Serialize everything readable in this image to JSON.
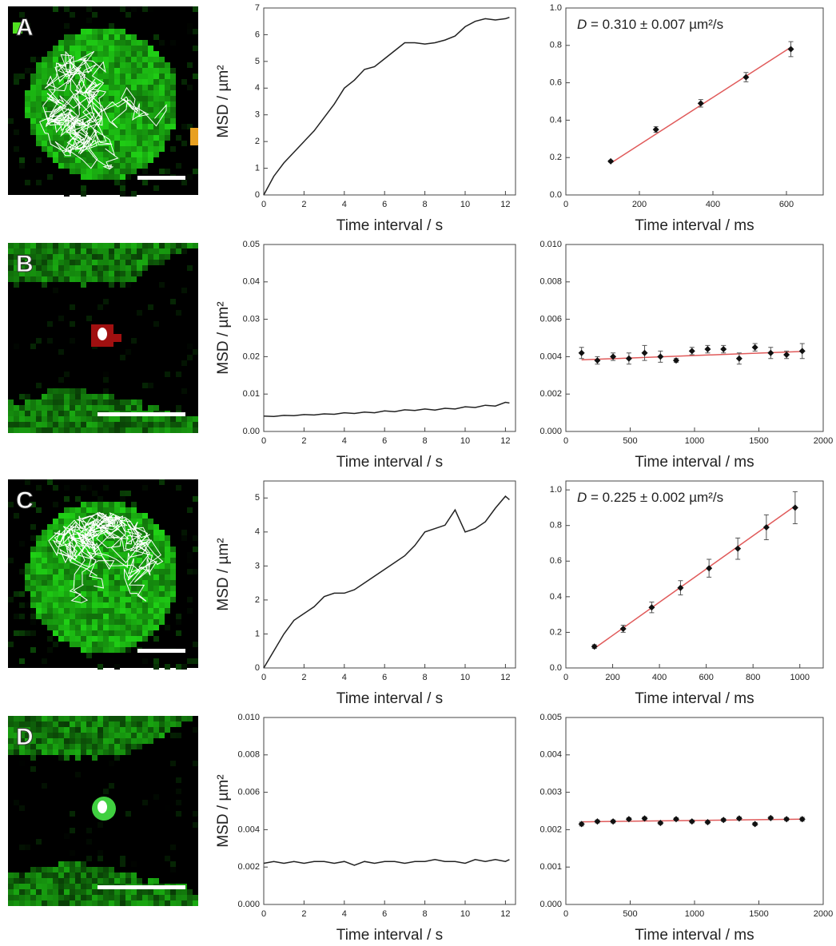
{
  "panels": [
    "A",
    "B",
    "C",
    "D"
  ],
  "chart_data": [
    {
      "type": "line",
      "xlabel": "Time interval / s",
      "ylabel": "MSD / µm²",
      "color": "#222222",
      "x": [
        0,
        0.5,
        1,
        1.5,
        2,
        2.5,
        3,
        3.5,
        4,
        4.5,
        5,
        5.5,
        6,
        6.5,
        7,
        7.5,
        8,
        8.5,
        9,
        9.5,
        10,
        10.5,
        11,
        11.5,
        12,
        12.2
      ],
      "values": [
        0,
        0.7,
        1.2,
        1.6,
        2.0,
        2.4,
        2.9,
        3.4,
        4.0,
        4.3,
        4.7,
        4.8,
        5.1,
        5.4,
        5.7,
        5.7,
        5.65,
        5.7,
        5.8,
        5.95,
        6.3,
        6.5,
        6.6,
        6.55,
        6.6,
        6.65
      ],
      "xlim": [
        0,
        12.5
      ],
      "xticks": [
        0,
        2,
        4,
        6,
        8,
        10,
        12
      ],
      "ylim": [
        0,
        7
      ],
      "yticks": [
        0,
        1,
        2,
        3,
        4,
        5,
        6,
        7
      ]
    },
    {
      "type": "scatter",
      "xlabel": "Time interval / ms",
      "annotation_symbol": "D",
      "annotation": " = 0.310 ± 0.007 µm²/s",
      "series": [
        {
          "color": "#111111",
          "x": [
            122,
            245,
            367,
            490,
            612
          ],
          "values": [
            0.18,
            0.35,
            0.49,
            0.63,
            0.78
          ],
          "errors": [
            0.005,
            0.015,
            0.02,
            0.025,
            0.04
          ]
        }
      ],
      "fit": {
        "color": "#e05a5a",
        "x": [
          122,
          612
        ],
        "values": [
          0.17,
          0.79
        ]
      },
      "xlim": [
        0,
        700
      ],
      "xticks": [
        0,
        200,
        400,
        600
      ],
      "ylim": [
        0,
        1.0
      ],
      "yticks": [
        {
          "value": 0,
          "label": "0.0"
        },
        0.2,
        0.4,
        0.6,
        0.8,
        {
          "value": 1,
          "label": "1.0"
        }
      ]
    },
    {
      "type": "line",
      "xlabel": "Time interval / s",
      "ylabel": "MSD / µm²",
      "color": "#222222",
      "x": [
        0,
        0.5,
        1,
        1.5,
        2,
        2.5,
        3,
        3.5,
        4,
        4.5,
        5,
        5.5,
        6,
        6.5,
        7,
        7.5,
        8,
        8.5,
        9,
        9.5,
        10,
        10.5,
        11,
        11.5,
        12,
        12.2
      ],
      "values": [
        0.0041,
        0.004,
        0.0043,
        0.0042,
        0.0045,
        0.0044,
        0.0047,
        0.0046,
        0.005,
        0.0048,
        0.0052,
        0.005,
        0.0055,
        0.0053,
        0.0058,
        0.0056,
        0.006,
        0.0057,
        0.0062,
        0.006,
        0.0066,
        0.0064,
        0.007,
        0.0068,
        0.0078,
        0.0076
      ],
      "xlim": [
        0,
        12.5
      ],
      "xticks": [
        0,
        2,
        4,
        6,
        8,
        10,
        12
      ],
      "ylim": [
        0,
        0.05
      ],
      "yticks": [
        {
          "value": 0,
          "label": "0.00"
        },
        0.01,
        0.02,
        0.03,
        0.04,
        0.05
      ]
    },
    {
      "type": "scatter",
      "xlabel": "Time interval / ms",
      "series": [
        {
          "color": "#111111",
          "x": [
            122,
            245,
            367,
            490,
            612,
            735,
            857,
            980,
            1102,
            1225,
            1347,
            1470,
            1592,
            1715,
            1837
          ],
          "values": [
            0.0042,
            0.0038,
            0.004,
            0.0039,
            0.0042,
            0.004,
            0.0038,
            0.0043,
            0.0044,
            0.0044,
            0.0039,
            0.0045,
            0.0042,
            0.0041,
            0.0043
          ],
          "errors": [
            0.0003,
            0.0002,
            0.0002,
            0.0003,
            0.0004,
            0.0003,
            0.0001,
            0.0002,
            0.0002,
            0.0002,
            0.0003,
            0.0002,
            0.0003,
            0.0002,
            0.0004
          ]
        }
      ],
      "fit": {
        "color": "#e05a5a",
        "x": [
          122,
          1837
        ],
        "values": [
          0.00383,
          0.00428
        ]
      },
      "xlim": [
        0,
        2000
      ],
      "xticks": [
        0,
        500,
        1000,
        1500,
        2000
      ],
      "ylim": [
        0,
        0.01
      ],
      "yticks": [
        {
          "value": 0,
          "label": "0.000"
        },
        0.002,
        0.004,
        0.006,
        0.008,
        {
          "value": 0.01,
          "label": "0.010"
        }
      ]
    },
    {
      "type": "line",
      "xlabel": "Time interval / s",
      "ylabel": "MSD / µm²",
      "color": "#222222",
      "x": [
        0,
        0.5,
        1,
        1.5,
        2,
        2.5,
        3,
        3.5,
        4,
        4.5,
        5,
        5.5,
        6,
        6.5,
        7,
        7.5,
        8,
        8.5,
        9,
        9.5,
        10,
        10.5,
        11,
        11.5,
        12,
        12.2
      ],
      "values": [
        0,
        0.5,
        1.0,
        1.4,
        1.6,
        1.8,
        2.1,
        2.2,
        2.2,
        2.3,
        2.5,
        2.7,
        2.9,
        3.1,
        3.3,
        3.6,
        4.0,
        4.1,
        4.2,
        4.65,
        4.0,
        4.1,
        4.3,
        4.7,
        5.05,
        4.95
      ],
      "xlim": [
        0,
        12.5
      ],
      "xticks": [
        0,
        2,
        4,
        6,
        8,
        10,
        12
      ],
      "ylim": [
        0,
        5.5
      ],
      "yticks": [
        0,
        1,
        2,
        3,
        4,
        5
      ]
    },
    {
      "type": "scatter",
      "xlabel": "Time interval / ms",
      "annotation_symbol": "D",
      "annotation": " = 0.225 ± 0.002 µm²/s",
      "series": [
        {
          "color": "#111111",
          "x": [
            122,
            245,
            367,
            490,
            612,
            735,
            857,
            980
          ],
          "values": [
            0.12,
            0.22,
            0.34,
            0.45,
            0.56,
            0.67,
            0.79,
            0.9
          ],
          "errors": [
            0.01,
            0.02,
            0.03,
            0.04,
            0.05,
            0.06,
            0.07,
            0.09
          ]
        }
      ],
      "fit": {
        "color": "#e05a5a",
        "x": [
          122,
          980
        ],
        "values": [
          0.11,
          0.91
        ]
      },
      "xlim": [
        0,
        1100
      ],
      "xticks": [
        0,
        200,
        400,
        600,
        800,
        1000
      ],
      "ylim": [
        0,
        1.05
      ],
      "yticks": [
        {
          "value": 0,
          "label": "0.0"
        },
        0.2,
        0.4,
        0.6,
        0.8,
        {
          "value": 1,
          "label": "1.0"
        }
      ]
    },
    {
      "type": "line",
      "xlabel": "Time interval / s",
      "ylabel": "MSD / µm²",
      "color": "#222222",
      "x": [
        0,
        0.5,
        1,
        1.5,
        2,
        2.5,
        3,
        3.5,
        4,
        4.5,
        5,
        5.5,
        6,
        6.5,
        7,
        7.5,
        8,
        8.5,
        9,
        9.5,
        10,
        10.5,
        11,
        11.5,
        12,
        12.2
      ],
      "values": [
        0.0022,
        0.0023,
        0.0022,
        0.0023,
        0.0022,
        0.0023,
        0.0023,
        0.0022,
        0.0023,
        0.0021,
        0.0023,
        0.0022,
        0.0023,
        0.0023,
        0.0022,
        0.0023,
        0.0023,
        0.0024,
        0.0023,
        0.0023,
        0.0022,
        0.0024,
        0.0023,
        0.0024,
        0.0023,
        0.0024
      ],
      "xlim": [
        0,
        12.5
      ],
      "xticks": [
        0,
        2,
        4,
        6,
        8,
        10,
        12
      ],
      "ylim": [
        0,
        0.01
      ],
      "yticks": [
        {
          "value": 0,
          "label": "0.000"
        },
        0.002,
        0.004,
        0.006,
        0.008,
        {
          "value": 0.01,
          "label": "0.010"
        }
      ]
    },
    {
      "type": "scatter",
      "xlabel": "Time interval / ms",
      "series": [
        {
          "color": "#111111",
          "x": [
            122,
            245,
            367,
            490,
            612,
            735,
            857,
            980,
            1102,
            1225,
            1347,
            1470,
            1592,
            1715,
            1837
          ],
          "values": [
            0.00215,
            0.00222,
            0.00222,
            0.00228,
            0.0023,
            0.00218,
            0.00228,
            0.00222,
            0.0022,
            0.00226,
            0.0023,
            0.00215,
            0.00231,
            0.00228,
            0.00228
          ],
          "errors": [
            5e-05,
            4e-05,
            4e-05,
            4e-05,
            4e-05,
            4e-05,
            4e-05,
            4e-05,
            4e-05,
            4e-05,
            4e-05,
            4e-05,
            4e-05,
            4e-05,
            5e-05
          ]
        }
      ],
      "fit": {
        "color": "#e05a5a",
        "x": [
          122,
          1837
        ],
        "values": [
          0.00221,
          0.00228
        ]
      },
      "xlim": [
        0,
        2000
      ],
      "xticks": [
        0,
        500,
        1000,
        1500,
        2000
      ],
      "ylim": [
        0,
        0.005
      ],
      "yticks": [
        {
          "value": 0,
          "label": "0.000"
        },
        0.001,
        0.002,
        0.003,
        0.004,
        0.005
      ]
    }
  ]
}
